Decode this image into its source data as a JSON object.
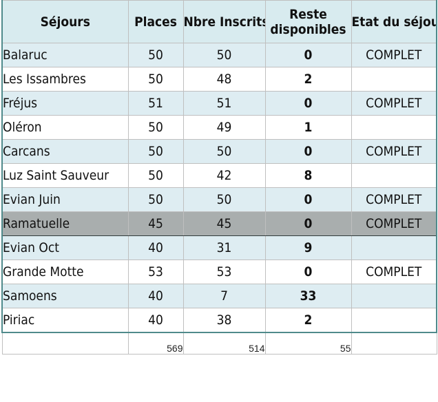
{
  "headers": {
    "sejours": "Séjours",
    "places": "Places",
    "inscrits": "Nbre Inscrits",
    "reste_line1": "Reste",
    "reste_line2": "disponibles",
    "etat": "Etat du séjour"
  },
  "rows": [
    {
      "sejour": "Balaruc",
      "places": "50",
      "inscrits": "50",
      "reste": "0",
      "etat": "COMPLET"
    },
    {
      "sejour": "Les Issambres",
      "places": "50",
      "inscrits": "48",
      "reste": "2",
      "etat": ""
    },
    {
      "sejour": "Fréjus",
      "places": "51",
      "inscrits": "51",
      "reste": "0",
      "etat": "COMPLET"
    },
    {
      "sejour": "Oléron",
      "places": "50",
      "inscrits": "49",
      "reste": "1",
      "etat": ""
    },
    {
      "sejour": "Carcans",
      "places": "50",
      "inscrits": "50",
      "reste": "0",
      "etat": "COMPLET"
    },
    {
      "sejour": "Luz Saint Sauveur",
      "places": "50",
      "inscrits": "42",
      "reste": "8",
      "etat": ""
    },
    {
      "sejour": "Evian Juin",
      "places": "50",
      "inscrits": "50",
      "reste": "0",
      "etat": "COMPLET"
    },
    {
      "sejour": "Ramatuelle",
      "places": "45",
      "inscrits": "45",
      "reste": "0",
      "etat": "COMPLET"
    },
    {
      "sejour": "Evian Oct",
      "places": "40",
      "inscrits": "31",
      "reste": "9",
      "etat": ""
    },
    {
      "sejour": "Grande Motte",
      "places": "53",
      "inscrits": "53",
      "reste": "0",
      "etat": "COMPLET"
    },
    {
      "sejour": "Samoens",
      "places": "40",
      "inscrits": "7",
      "reste": "33",
      "etat": ""
    },
    {
      "sejour": "Piriac",
      "places": "40",
      "inscrits": "38",
      "reste": "2",
      "etat": ""
    }
  ],
  "totals": {
    "places": "569",
    "inscrits": "514",
    "reste": "55"
  },
  "selected_row_index": 7,
  "colors": {
    "header_bg": "#d8ebef",
    "band_bg": "#deedf2",
    "selected_bg": "#a9aeae",
    "border_accent": "#4f8a8b"
  }
}
